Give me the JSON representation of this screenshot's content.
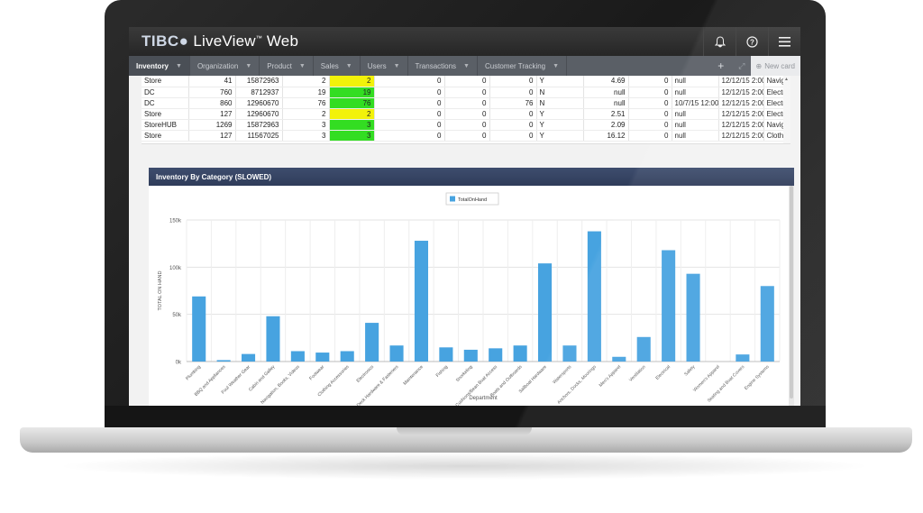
{
  "app": {
    "brand_prefix": "TIBC",
    "brand_mark": "●",
    "brand_name": "LiveView",
    "brand_tm": "™",
    "brand_suffix": "Web"
  },
  "header_icons": [
    "bell-icon",
    "help-icon",
    "menu-icon"
  ],
  "tabs": [
    {
      "label": "Inventory",
      "active": true
    },
    {
      "label": "Organization"
    },
    {
      "label": "Product"
    },
    {
      "label": "Sales"
    },
    {
      "label": "Users"
    },
    {
      "label": "Transactions"
    },
    {
      "label": "Customer Tracking"
    }
  ],
  "tab_actions": {
    "add": "+",
    "new_card": "New card"
  },
  "table": {
    "rows": [
      [
        "Store",
        "41",
        "15872963",
        "2",
        "2",
        "0",
        "0",
        "0",
        "Y",
        "4.69",
        "0",
        "null",
        "12/12/15 2:00",
        "Navigation, Bo"
      ],
      [
        "DC",
        "760",
        "8712937",
        "19",
        "19",
        "0",
        "0",
        "0",
        "N",
        "null",
        "0",
        "null",
        "12/12/15 2:00",
        "Electronics"
      ],
      [
        "DC",
        "860",
        "12960670",
        "76",
        "76",
        "0",
        "0",
        "76",
        "N",
        "null",
        "0",
        "10/7/15 12:00",
        "12/12/15 2:00",
        "Electronics"
      ],
      [
        "Store",
        "127",
        "12960670",
        "2",
        "2",
        "0",
        "0",
        "0",
        "Y",
        "2.51",
        "0",
        "null",
        "12/12/15 2:00",
        "Electronics"
      ],
      [
        "StoreHUB",
        "1269",
        "15872963",
        "3",
        "3",
        "0",
        "0",
        "0",
        "Y",
        "2.09",
        "0",
        "null",
        "12/12/15 2:00",
        "Navigation, Bo"
      ],
      [
        "Store",
        "127",
        "11567025",
        "3",
        "3",
        "0",
        "0",
        "0",
        "Y",
        "16.12",
        "0",
        "null",
        "12/12/15 2:00",
        "Clothing Acces"
      ]
    ],
    "highlight": [
      "green",
      "green",
      "green",
      "yellow",
      "green",
      "green"
    ],
    "highlight_top": [
      "yellow",
      "green",
      "green",
      "yellow",
      "green",
      "green"
    ]
  },
  "chart_card": {
    "title": "Inventory By Category (SLOWED)"
  },
  "chart_data": {
    "type": "bar",
    "title": "",
    "legend": "TotalOnHand",
    "legend_position": "top-center",
    "xlabel": "Department",
    "ylabel": "TOTAL ON HAND",
    "ylim": [
      0,
      150000
    ],
    "yticks": [
      "0k",
      "50k",
      "100k",
      "150k"
    ],
    "bar_color": "#47a3e0",
    "grid": true,
    "categories": [
      "Plumbing",
      "BBQ and Appliances",
      "Foul Weather Gear",
      "Cabin and Galley",
      "Navigation, Books, Videos",
      "Footwear",
      "Clothing Accessories",
      "Electronics",
      "Deck Hardware & Fasteners",
      "Maintenance",
      "Fishing",
      "Snorkeling",
      "Cushions/Bean Boat Access",
      "Boats and Outboards",
      "Sailboat Hardware",
      "Watersports",
      "Anchors, Docks, Moorings",
      "Men's Apparel",
      "Ventilation",
      "Electrical",
      "Safety",
      "Women's Apparel",
      "Seating and Boat Covers",
      "Engine Systems"
    ],
    "values": [
      69000,
      1500,
      8000,
      48000,
      11000,
      9500,
      11000,
      41000,
      17000,
      128000,
      15000,
      12500,
      14000,
      17000,
      104000,
      17000,
      138000,
      5000,
      26000,
      118000,
      93000,
      0,
      7500,
      80000
    ]
  }
}
